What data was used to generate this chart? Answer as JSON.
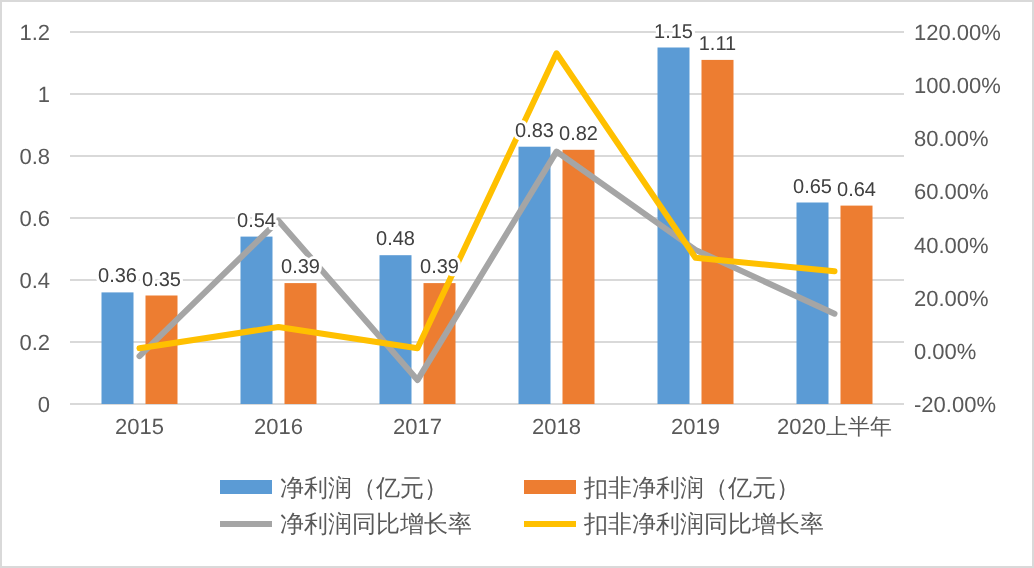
{
  "chart_data": {
    "type": "bar",
    "categories": [
      "2015",
      "2016",
      "2017",
      "2018",
      "2019",
      "2020上半年"
    ],
    "series": [
      {
        "name": "净利润（亿元）",
        "color": "#5b9bd5",
        "values": [
          0.36,
          0.54,
          0.48,
          0.83,
          1.15,
          0.65
        ],
        "value_labels": [
          "0.36",
          "0.54",
          "0.48",
          "0.83",
          "1.15",
          "0.65"
        ]
      },
      {
        "name": "扣非净利润（亿元）",
        "color": "#ed7d31",
        "values": [
          0.35,
          0.39,
          0.39,
          0.82,
          1.11,
          0.64
        ],
        "value_labels": [
          "0.35",
          "0.39",
          "0.39",
          "0.82",
          "1.11",
          "0.64"
        ]
      },
      {
        "name": "净利润同比增长率",
        "type": "line",
        "axis": "y2",
        "color": "#a5a5a5",
        "values": [
          -2,
          49,
          -11,
          75,
          38,
          14
        ]
      },
      {
        "name": "扣非净利润同比增长率",
        "type": "line",
        "axis": "y2",
        "color": "#ffc000",
        "values": [
          1,
          9,
          1,
          112,
          35,
          30
        ]
      }
    ],
    "ylim": [
      0,
      1.2
    ],
    "yticks": [
      0,
      0.2,
      0.4,
      0.6,
      0.8,
      1,
      1.2
    ],
    "y2lim": [
      -20,
      120
    ],
    "y2ticks": [
      {
        "value": -20,
        "label": "-20.00%"
      },
      {
        "value": 0,
        "label": "0.00%"
      },
      {
        "value": 20,
        "label": "20.00%"
      },
      {
        "value": 40,
        "label": "40.00%"
      },
      {
        "value": 60,
        "label": "60.00%"
      },
      {
        "value": 80,
        "label": "80.00%"
      },
      {
        "value": 100,
        "label": "100.00%"
      },
      {
        "value": 120,
        "label": "120.00%"
      }
    ],
    "grid": "y",
    "legend": "bottom",
    "marker": "none",
    "line_style": "solid"
  }
}
